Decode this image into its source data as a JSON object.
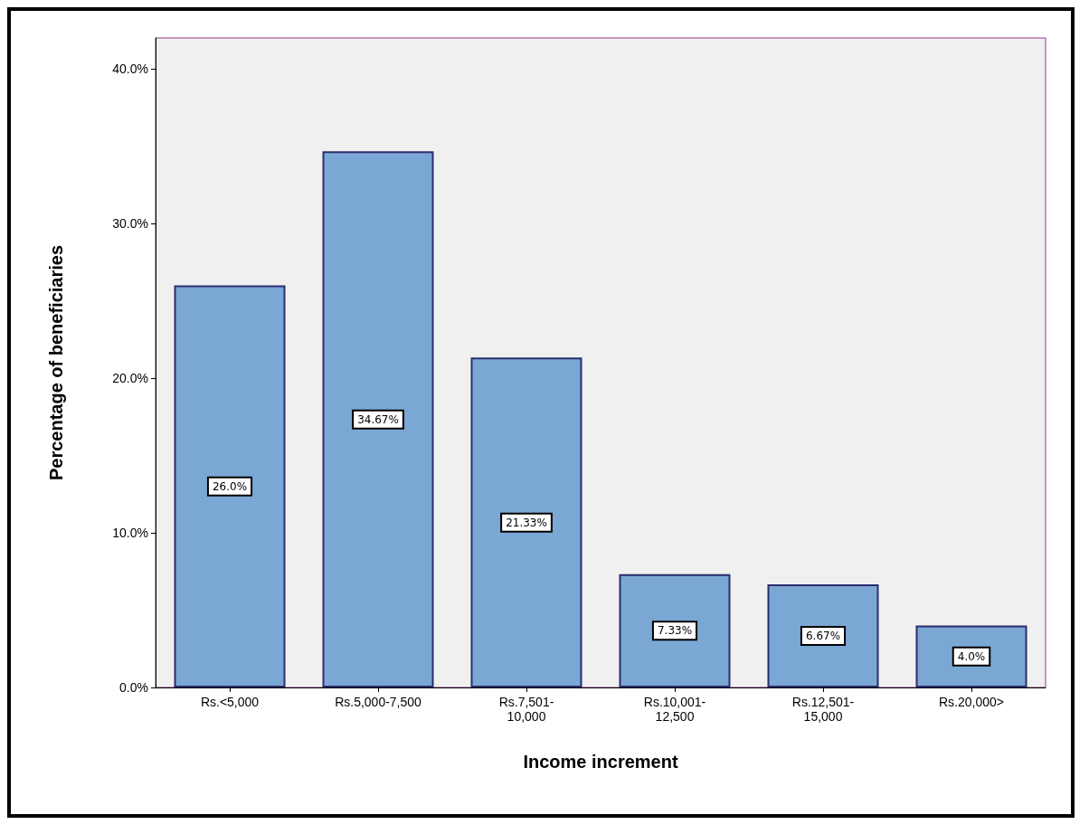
{
  "chart_data": {
    "type": "bar",
    "xlabel": "Income increment",
    "ylabel": "Percentage of beneficiaries",
    "categories": [
      "Rs.<5,000",
      "Rs.5,000-7,500",
      "Rs.7,501-\n10,000",
      "Rs.10,001-\n12,500",
      "Rs.12,501-\n15,000",
      "Rs.20,000>"
    ],
    "values": [
      26.0,
      34.67,
      21.33,
      7.33,
      6.67,
      4.0
    ],
    "value_labels": [
      "26.0%",
      "34.67%",
      "21.33%",
      "7.33%",
      "6.67%",
      "4.0%"
    ],
    "color": "#7ba7d4",
    "ylim": [
      0,
      42
    ],
    "yticks": [
      {
        "value": 0,
        "label": "0.0%"
      },
      {
        "value": 10,
        "label": "10.0%"
      },
      {
        "value": 20,
        "label": "20.0%"
      },
      {
        "value": 30,
        "label": "30.0%"
      },
      {
        "value": 40,
        "label": "40.0%"
      }
    ],
    "grid": false
  }
}
